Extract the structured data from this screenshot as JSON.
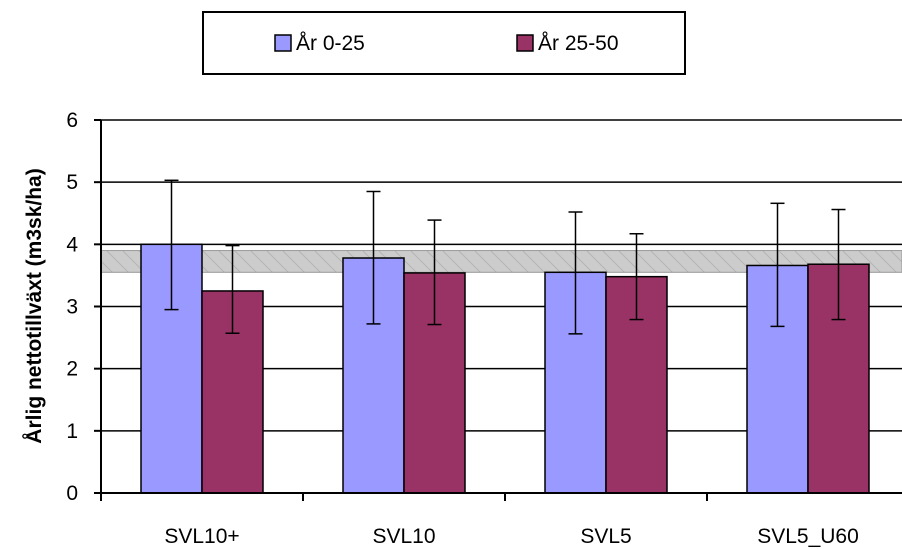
{
  "chart_data": {
    "type": "bar",
    "categories": [
      "SVL10+",
      "SVL10",
      "SVL5",
      "SVL5_U60"
    ],
    "series": [
      {
        "name": "År 0-25",
        "color": "#9999ff",
        "values": [
          4.0,
          3.78,
          3.55,
          3.66
        ],
        "error_low": [
          2.95,
          2.72,
          2.56,
          2.68
        ],
        "error_high": [
          5.03,
          4.85,
          4.52,
          4.66
        ]
      },
      {
        "name": "År 25-50",
        "color": "#993366",
        "values": [
          3.25,
          3.54,
          3.48,
          3.68
        ],
        "error_low": [
          2.57,
          2.71,
          2.79,
          2.79
        ],
        "error_high": [
          3.98,
          4.39,
          4.17,
          4.56
        ]
      }
    ],
    "reference_band": [
      3.55,
      3.9
    ],
    "ylabel": "Årlig nettotillväxt (m3sk/ha)",
    "ylim": [
      0,
      6
    ],
    "yticks": [
      0,
      1,
      2,
      3,
      4,
      5,
      6
    ],
    "grid": true,
    "legend_position": "top"
  }
}
